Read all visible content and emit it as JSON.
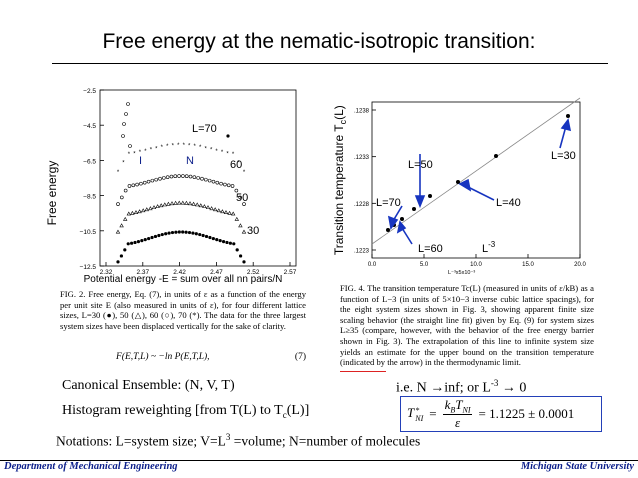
{
  "slide": {
    "title": "Free energy at the nematic-isotropic transition:",
    "left_ylabel": "Free energy",
    "left_xlabel": "Potential energy -E = sum over all nn pairs/N",
    "right_ylabel": "Transition temperature T",
    "right_ylabel_sub": "c",
    "right_ylabel_tail": "(L)",
    "canonical": "Canonical Ensemble: (N, V, T)",
    "limit": "i.e. N →inf; or L",
    "limit_sup": "-3",
    "limit_tail": " → 0",
    "histogram": "Histogram reweighting [from T(L) to T",
    "histogram_sub": "c",
    "histogram_tail": "(L)]",
    "notations_a": "Notations: L=system size; V=L",
    "notations_sup": "3",
    "notations_b": " =volume; N=number of molecules",
    "footer_left": "Department of Mechanical Engineering",
    "footer_right": "Michigan State University"
  },
  "fig2": {
    "caption": "FIG. 2. Free energy, Eq. (7), in units of ε as a function of the energy per unit site E (also measured in units of ε), for four different lattice sizes, L=30 (●), 50 (△), 60 (○), 70 (*). The data for the three largest system sizes have been displaced vertically for the sake of clarity.",
    "equation": "F(E,T,L) ~ −ln P(E,T,L),",
    "equation_number": "(7)",
    "labels": {
      "l70": "L=70",
      "l60": "60",
      "l50": "50",
      "l30": "30",
      "i": "I",
      "n": "N"
    },
    "yticks": [
      "−2.5",
      "−4.5",
      "−6.5",
      "−8.5",
      "−10.5",
      "−12.5"
    ],
    "xticks": [
      "2.32",
      "2.37",
      "2.42",
      "2.47",
      "2.52",
      "2.57"
    ]
  },
  "fig4": {
    "caption": "FIG. 4. The transition temperature Tc(L) (measured in units of ε/kB) as a function of L−3 (in units of 5×10−3 inverse cubic lattice spacings), for the eight system sizes shown in Fig. 3, showing apparent finite size scaling behavior (the straight line fit) given by Eq. (9) for system sizes L≥35 (compare, however, with the behavior of the free energy barrier shown in Fig. 3). The extrapolation of this line to infinite system size yields an estimate for the upper bound on the transition temperature (indicated by the arrow) in the thermodynamic limit.",
    "labels": {
      "l30": "L=30",
      "l50": "L=50",
      "l40": "L=40",
      "l70": "L=70",
      "l60": "L=60",
      "lpow": "L",
      "lpow_sup": "-3"
    },
    "yticks": [
      ".1238",
      ".1233",
      ".1228",
      ".1223"
    ],
    "xticks": [
      "0.0",
      "5.0",
      "10.0",
      "15.0",
      "20.0"
    ],
    "xunit": "L⁻³x5x10⁻³"
  },
  "formula": {
    "lhs": "T",
    "lhs_sup": "*",
    "lhs_sub": "NI",
    "num": "k",
    "num_sub": "B",
    "num_t": "T",
    "num_t_sub": "NI",
    "den": "ε",
    "rhs": "= 1.1225 ± 0.0001"
  }
}
